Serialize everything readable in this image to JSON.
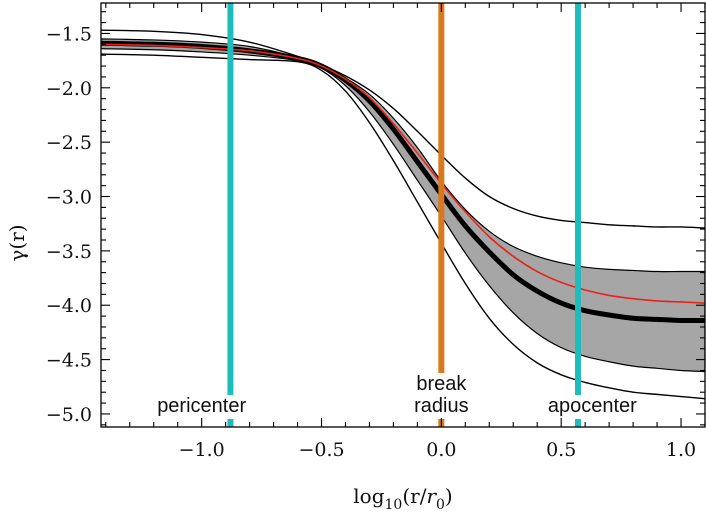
{
  "chart_data": {
    "type": "line",
    "title": "",
    "xlabel": "log10(r/r0)",
    "ylabel": "γ(r)",
    "xlim": [
      -1.42,
      1.1
    ],
    "ylim": [
      -5.12,
      -1.22
    ],
    "x_ticks": [
      -1.0,
      -0.5,
      0.0,
      0.5,
      1.0
    ],
    "x_tick_labels": [
      "−1.0",
      "−0.5",
      "0.0",
      "0.5",
      "1.0"
    ],
    "y_ticks": [
      -1.5,
      -2.0,
      -2.5,
      -3.0,
      -3.5,
      -4.0,
      -4.5,
      -5.0
    ],
    "y_tick_labels": [
      "−1.5",
      "−2.0",
      "−2.5",
      "−3.0",
      "−3.5",
      "−4.0",
      "−4.5",
      "−5.0"
    ],
    "band": {
      "name": "confidence band",
      "color": "#a6a6a6",
      "x": [
        -1.42,
        -1.2,
        -1.0,
        -0.8,
        -0.6,
        -0.5,
        -0.4,
        -0.3,
        -0.2,
        -0.1,
        0.0,
        0.1,
        0.2,
        0.3,
        0.4,
        0.5,
        0.6,
        0.7,
        0.8,
        0.9,
        1.0,
        1.1
      ],
      "upper": [
        -1.55,
        -1.56,
        -1.58,
        -1.62,
        -1.72,
        -1.8,
        -1.91,
        -2.06,
        -2.28,
        -2.55,
        -2.86,
        -3.12,
        -3.32,
        -3.46,
        -3.55,
        -3.61,
        -3.65,
        -3.67,
        -3.68,
        -3.69,
        -3.69,
        -3.69
      ],
      "lower": [
        -1.64,
        -1.65,
        -1.67,
        -1.7,
        -1.75,
        -1.82,
        -1.98,
        -2.22,
        -2.52,
        -2.85,
        -3.18,
        -3.52,
        -3.82,
        -4.07,
        -4.26,
        -4.39,
        -4.47,
        -4.52,
        -4.56,
        -4.58,
        -4.6,
        -4.61
      ]
    },
    "series": [
      {
        "name": "outer upper",
        "color": "#000000",
        "width": 1.4,
        "x": [
          -1.42,
          -1.2,
          -1.0,
          -0.8,
          -0.6,
          -0.5,
          -0.4,
          -0.3,
          -0.2,
          -0.1,
          0.0,
          0.1,
          0.2,
          0.3,
          0.4,
          0.5,
          0.6,
          0.7,
          0.8,
          0.9,
          1.0,
          1.1
        ],
        "y": [
          -1.47,
          -1.48,
          -1.51,
          -1.58,
          -1.71,
          -1.79,
          -1.89,
          -2.02,
          -2.19,
          -2.4,
          -2.62,
          -2.83,
          -3.0,
          -3.11,
          -3.18,
          -3.22,
          -3.24,
          -3.26,
          -3.27,
          -3.28,
          -3.28,
          -3.29
        ]
      },
      {
        "name": "outer lower",
        "color": "#000000",
        "width": 1.4,
        "x": [
          -1.42,
          -1.2,
          -1.0,
          -0.8,
          -0.6,
          -0.5,
          -0.4,
          -0.3,
          -0.2,
          -0.1,
          0.0,
          0.1,
          0.2,
          0.3,
          0.4,
          0.5,
          0.6,
          0.7,
          0.8,
          0.9,
          1.0,
          1.1
        ],
        "y": [
          -1.69,
          -1.7,
          -1.72,
          -1.74,
          -1.76,
          -1.84,
          -2.03,
          -2.32,
          -2.67,
          -3.05,
          -3.43,
          -3.8,
          -4.12,
          -4.36,
          -4.53,
          -4.64,
          -4.71,
          -4.76,
          -4.8,
          -4.82,
          -4.84,
          -4.86
        ]
      },
      {
        "name": "median",
        "color": "#000000",
        "width": 5,
        "x": [
          -1.42,
          -1.2,
          -1.0,
          -0.8,
          -0.6,
          -0.5,
          -0.4,
          -0.3,
          -0.2,
          -0.1,
          0.0,
          0.1,
          0.2,
          0.3,
          0.4,
          0.5,
          0.6,
          0.7,
          0.8,
          0.9,
          1.0,
          1.1
        ],
        "y": [
          -1.59,
          -1.6,
          -1.62,
          -1.66,
          -1.73,
          -1.8,
          -1.93,
          -2.12,
          -2.38,
          -2.68,
          -2.98,
          -3.27,
          -3.51,
          -3.72,
          -3.87,
          -3.98,
          -4.05,
          -4.09,
          -4.12,
          -4.13,
          -4.14,
          -4.14
        ]
      },
      {
        "name": "best fit",
        "color": "#e8231a",
        "width": 1.6,
        "x": [
          -1.42,
          -1.2,
          -1.0,
          -0.8,
          -0.6,
          -0.5,
          -0.4,
          -0.3,
          -0.2,
          -0.1,
          0.0,
          0.1,
          0.2,
          0.3,
          0.4,
          0.5,
          0.6,
          0.7,
          0.8,
          0.9,
          1.0,
          1.1
        ],
        "y": [
          -1.6,
          -1.61,
          -1.63,
          -1.66,
          -1.73,
          -1.8,
          -1.92,
          -2.09,
          -2.33,
          -2.6,
          -2.88,
          -3.14,
          -3.37,
          -3.55,
          -3.69,
          -3.79,
          -3.86,
          -3.91,
          -3.94,
          -3.96,
          -3.97,
          -3.98
        ]
      }
    ],
    "vertical_lines": [
      {
        "name": "pericenter",
        "x": -0.88,
        "color": "#1fbcbc",
        "label": "pericenter",
        "label_lines": [
          "pericenter"
        ],
        "label_x": -1.0
      },
      {
        "name": "break-radius",
        "x": 0.0,
        "color": "#d9781c",
        "label": "break radius",
        "label_lines": [
          "break",
          "radius"
        ],
        "label_x": 0.0
      },
      {
        "name": "apocenter",
        "x": 0.57,
        "color": "#1fbcbc",
        "label": "apocenter",
        "label_lines": [
          "apocenter"
        ],
        "label_x": 0.63
      }
    ]
  }
}
